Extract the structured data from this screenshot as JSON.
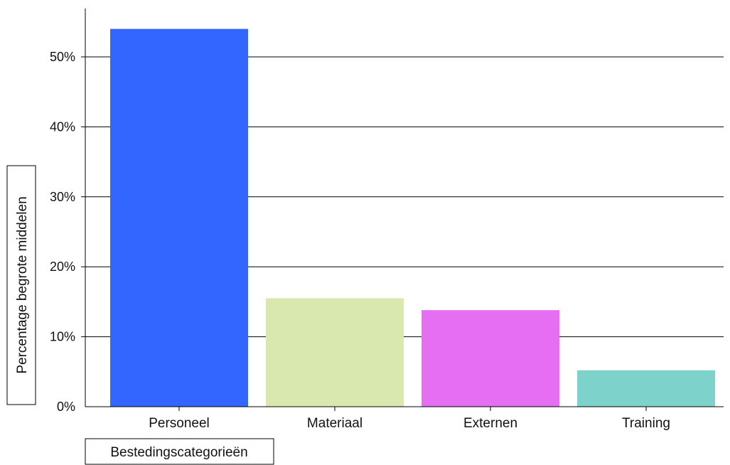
{
  "chart_data": {
    "type": "bar",
    "categories": [
      "Personeel",
      "Materiaal",
      "Externen",
      "Training"
    ],
    "values": [
      54.0,
      15.5,
      13.8,
      5.2
    ],
    "colors": [
      "#3366ff",
      "#d9e8ae",
      "#e56ef2",
      "#7dd3cc"
    ],
    "unit": "%",
    "xlabel": "Bestedingscategorieën",
    "ylabel": "Percentage begrote middelen",
    "ylim": [
      0,
      60
    ],
    "yticks": [
      0,
      10,
      20,
      30,
      40,
      50
    ],
    "ytick_labels": [
      "0%",
      "10%",
      "20%",
      "30%",
      "40%",
      "50%"
    ],
    "grid": "horizontal",
    "legend": "none"
  }
}
